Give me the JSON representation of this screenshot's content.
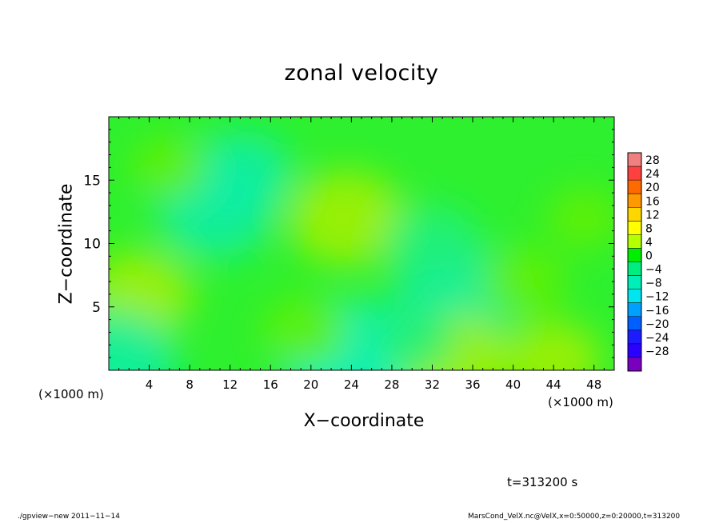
{
  "chart_data": {
    "type": "heatmap",
    "title": "zonal velocity",
    "xlabel": "X−coordinate",
    "ylabel": "Z−coordinate",
    "x_unit_left": "(×1000 m)",
    "x_unit_right": "(×1000 m)",
    "xlim": [
      0,
      50
    ],
    "ylim": [
      0,
      20
    ],
    "x_ticks": [
      4,
      8,
      12,
      16,
      20,
      24,
      28,
      32,
      36,
      40,
      44,
      48
    ],
    "y_ticks": [
      5,
      10,
      15
    ],
    "colorbar": {
      "levels": [
        28,
        24,
        20,
        16,
        12,
        8,
        4,
        0,
        -4,
        -8,
        -12,
        -16,
        -20,
        -24,
        -28
      ],
      "labels": [
        "28",
        "24",
        "20",
        "16",
        "12",
        "8",
        "4",
        "0",
        "−4",
        "−8",
        "−12",
        "−16",
        "−20",
        "−24",
        "−28"
      ],
      "colors": [
        "#f08080",
        "#ff4040",
        "#ff6a00",
        "#ff9900",
        "#ffd700",
        "#ffff00",
        "#b4ff00",
        "#00ee00",
        "#00ee80",
        "#00eeb8",
        "#00e5ee",
        "#00a0ff",
        "#0060ff",
        "#1c1cff",
        "#2b00ff",
        "#7a00c0"
      ]
    },
    "blobs": [
      {
        "x": 10.5,
        "z": 12.5,
        "value": -6
      },
      {
        "x": 13,
        "z": 15.5,
        "value": -5
      },
      {
        "x": 3,
        "z": 6,
        "value": 5
      },
      {
        "x": 23.5,
        "z": 12,
        "value": 6
      },
      {
        "x": 24.5,
        "z": 0.6,
        "value": -9
      },
      {
        "x": 0.5,
        "z": 0.6,
        "value": -7
      },
      {
        "x": 34.5,
        "z": 6,
        "value": -7
      },
      {
        "x": 32,
        "z": 10,
        "value": -4
      },
      {
        "x": 34,
        "z": 0.8,
        "value": 6
      },
      {
        "x": 44,
        "z": 0.8,
        "value": 4
      },
      {
        "x": 41,
        "z": 7,
        "value": 3
      },
      {
        "x": 19.5,
        "z": 3,
        "value": 3
      },
      {
        "x": 30,
        "z": 2.5,
        "value": -3
      },
      {
        "x": 47,
        "z": 12,
        "value": 2
      },
      {
        "x": 6,
        "z": 16,
        "value": 2
      }
    ]
  },
  "timestamp": "t=313200 s",
  "footer_left": "./gpview−new  2011−11−14",
  "footer_right": "MarsCond_VelX.nc@VelX,x=0:50000,z=0:20000,t=313200"
}
